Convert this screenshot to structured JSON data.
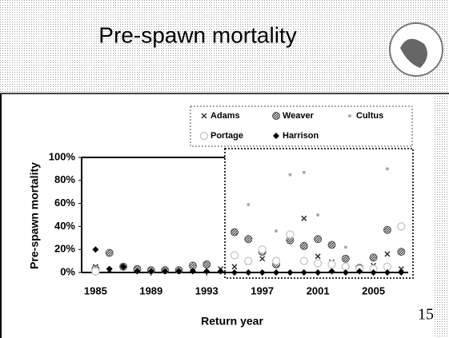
{
  "page_number": "15",
  "chart_data": {
    "type": "scatter",
    "title": "Pre-spawn mortality",
    "xlabel": "Return year",
    "ylabel": "Pre-spawn mortality",
    "xlim": [
      1984,
      2007.5
    ],
    "xticks": [
      1985,
      1989,
      1993,
      1997,
      2001,
      2005
    ],
    "ylim": [
      0,
      100
    ],
    "yticks": [
      {
        "value": 0,
        "label": "0%"
      },
      {
        "value": 20,
        "label": "20%"
      },
      {
        "value": 40,
        "label": "40%"
      },
      {
        "value": 60,
        "label": "60%"
      },
      {
        "value": 80,
        "label": "80%"
      },
      {
        "value": 100,
        "label": "100%"
      }
    ],
    "legend": "top-right",
    "series": [
      {
        "name": "Adams",
        "color": "#333333",
        "marker": "x",
        "x": [
          1985,
          1986,
          1988,
          1990,
          1992,
          1994,
          1995,
          1996,
          1997,
          1998,
          1999,
          2000,
          2001,
          2002,
          2003,
          2004,
          2005,
          2006,
          2007
        ],
        "values": [
          5,
          2,
          3,
          2,
          4,
          3,
          5,
          9,
          12,
          8,
          32,
          47,
          14,
          9,
          5,
          3,
          6,
          16,
          3
        ]
      },
      {
        "name": "Weaver",
        "color": "#555555",
        "marker": "hatched",
        "x": [
          1985,
          1986,
          1987,
          1988,
          1989,
          1990,
          1991,
          1992,
          1993,
          1995,
          1996,
          1997,
          1998,
          1999,
          2000,
          2001,
          2002,
          2003,
          2004,
          2005,
          2006,
          2007
        ],
        "values": [
          3,
          17,
          5,
          3,
          2,
          2,
          2,
          6,
          7,
          35,
          29,
          18,
          7,
          28,
          23,
          29,
          24,
          12,
          4,
          13,
          37,
          18
        ]
      },
      {
        "name": "Cultus",
        "color": "#aaaaaa",
        "marker": "dot",
        "x": [
          1996,
          1998,
          1999,
          2000,
          2001,
          2003,
          2006
        ],
        "values": [
          59,
          36,
          85,
          87,
          50,
          22,
          90
        ]
      },
      {
        "name": "Portage",
        "color": "#cccccc",
        "marker": "circle",
        "x": [
          1985,
          1995,
          1996,
          1997,
          1998,
          1999,
          2000,
          2001,
          2002,
          2003,
          2004,
          2005,
          2006,
          2007
        ],
        "values": [
          1,
          15,
          10,
          20,
          10,
          33,
          10,
          8,
          7,
          5,
          3,
          3,
          5,
          40
        ]
      },
      {
        "name": "Harrison",
        "color": "#000000",
        "marker": "diamond",
        "x": [
          1985,
          1986,
          1987,
          1988,
          1989,
          1990,
          1991,
          1992,
          1993,
          1994,
          1995,
          1996,
          1997,
          1998,
          1999,
          2000,
          2001,
          2002,
          2003,
          2004,
          2005,
          2006,
          2007
        ],
        "values": [
          20,
          3,
          5,
          1,
          1,
          1,
          1,
          1,
          1,
          1,
          0,
          0,
          0,
          0,
          0,
          0,
          0,
          1,
          0,
          1,
          0,
          0,
          0
        ]
      }
    ]
  }
}
